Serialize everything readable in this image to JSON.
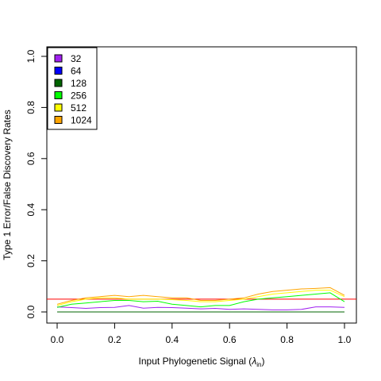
{
  "chart_data": {
    "type": "line",
    "xlabel": "Input Phylogenetic Signal (",
    "xlabel_symbol": "λ",
    "xlabel_subscript": "in",
    "xlabel_close": ")",
    "ylabel": "Type 1 Error/False Discovery Rates",
    "xlim": [
      0,
      1
    ],
    "ylim": [
      0,
      1
    ],
    "x_ticks": [
      "0.0",
      "0.2",
      "0.4",
      "0.6",
      "0.8",
      "1.0"
    ],
    "y_ticks": [
      "0.0",
      "0.2",
      "0.4",
      "0.6",
      "0.8",
      "1.0"
    ],
    "grid": false,
    "legend_position": "top-left",
    "reference_line": {
      "y": 0.05,
      "color": "#FF0000"
    },
    "x": [
      0.0,
      0.05,
      0.1,
      0.15,
      0.2,
      0.25,
      0.3,
      0.35,
      0.4,
      0.45,
      0.5,
      0.55,
      0.6,
      0.65,
      0.7,
      0.75,
      0.8,
      0.85,
      0.9,
      0.95,
      1.0
    ],
    "series": [
      {
        "name": "32",
        "color": "#A020F0",
        "values": [
          0.02,
          0.017,
          0.014,
          0.017,
          0.018,
          0.025,
          0.015,
          0.018,
          0.017,
          0.015,
          0.012,
          0.014,
          0.01,
          0.012,
          0.01,
          0.008,
          0.008,
          0.01,
          0.02,
          0.02,
          0.018
        ]
      },
      {
        "name": "64",
        "color": "#0000FF",
        "values": [
          0.0,
          0.0,
          0.0,
          0.0,
          0.0,
          0.0,
          0.0,
          0.0,
          0.0,
          0.0,
          0.0,
          0.0,
          0.0,
          0.0,
          0.0,
          0.0,
          0.0,
          0.0,
          0.0,
          0.0,
          0.0
        ]
      },
      {
        "name": "128",
        "color": "#006400",
        "values": [
          0.0,
          0.0,
          0.0,
          0.0,
          0.0,
          0.0,
          0.0,
          0.0,
          0.0,
          0.0,
          0.0,
          0.0,
          0.0,
          0.0,
          0.0,
          0.0,
          0.0,
          0.0,
          0.0,
          0.0,
          0.0
        ]
      },
      {
        "name": "256",
        "color": "#00FF00",
        "values": [
          0.018,
          0.03,
          0.035,
          0.04,
          0.045,
          0.045,
          0.04,
          0.042,
          0.03,
          0.025,
          0.02,
          0.025,
          0.025,
          0.04,
          0.05,
          0.055,
          0.06,
          0.065,
          0.07,
          0.075,
          0.04
        ]
      },
      {
        "name": "512",
        "color": "#FFFF00",
        "values": [
          0.025,
          0.04,
          0.05,
          0.055,
          0.055,
          0.05,
          0.05,
          0.05,
          0.048,
          0.045,
          0.04,
          0.04,
          0.045,
          0.05,
          0.06,
          0.07,
          0.075,
          0.08,
          0.085,
          0.085,
          0.06
        ]
      },
      {
        "name": "1024",
        "color": "#FFA500",
        "values": [
          0.03,
          0.045,
          0.055,
          0.06,
          0.065,
          0.06,
          0.065,
          0.06,
          0.055,
          0.055,
          0.045,
          0.045,
          0.05,
          0.055,
          0.07,
          0.08,
          0.085,
          0.09,
          0.092,
          0.095,
          0.065
        ]
      }
    ]
  }
}
